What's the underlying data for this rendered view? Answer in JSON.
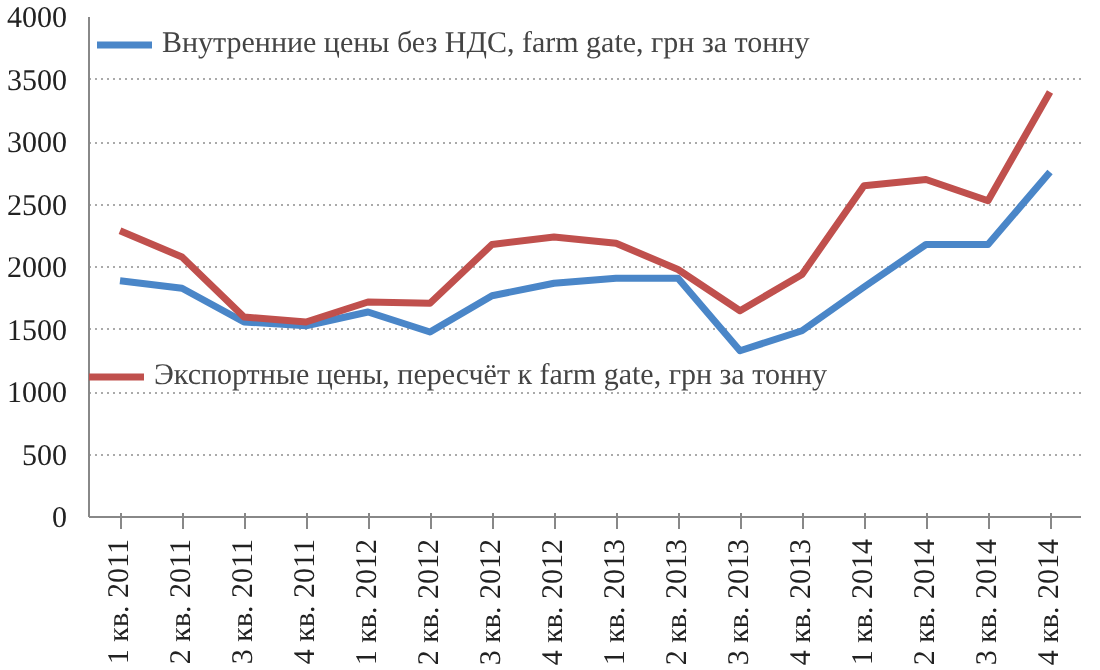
{
  "chart_data": {
    "type": "line",
    "categories": [
      "1 кв. 2011",
      "2 кв. 2011",
      "3 кв. 2011",
      "4 кв. 2011",
      "1 кв. 2012",
      "2 кв. 2012",
      "3 кв. 2012",
      "4 кв. 2012",
      "1 кв. 2013",
      "2 кв. 2013",
      "3 кв. 2013",
      "4 кв. 2013",
      "1 кв. 2014",
      "2 кв. 2014",
      "3 кв. 2014",
      "4 кв. 2014"
    ],
    "series": [
      {
        "name": "Внутренние цены без НДС, farm gate, грн за тонну",
        "color": "#4a86c8",
        "values": [
          1890,
          1830,
          1560,
          1530,
          1640,
          1480,
          1770,
          1870,
          1910,
          1910,
          1330,
          1490,
          1840,
          2180,
          2180,
          2760
        ]
      },
      {
        "name": "Экспортные цены, пересчёт к farm gate, грн за тонну",
        "color": "#c0504d",
        "values": [
          2290,
          2080,
          1600,
          1560,
          1720,
          1710,
          2180,
          2240,
          2190,
          1980,
          1650,
          1940,
          2650,
          2700,
          2530,
          3400
        ]
      }
    ],
    "ylim": [
      0,
      4000
    ],
    "yticks": [
      0,
      500,
      1000,
      1500,
      2000,
      2500,
      3000,
      3500,
      4000
    ],
    "grid": "y",
    "legend": "top left",
    "marker": "none",
    "line_style": "solid"
  }
}
